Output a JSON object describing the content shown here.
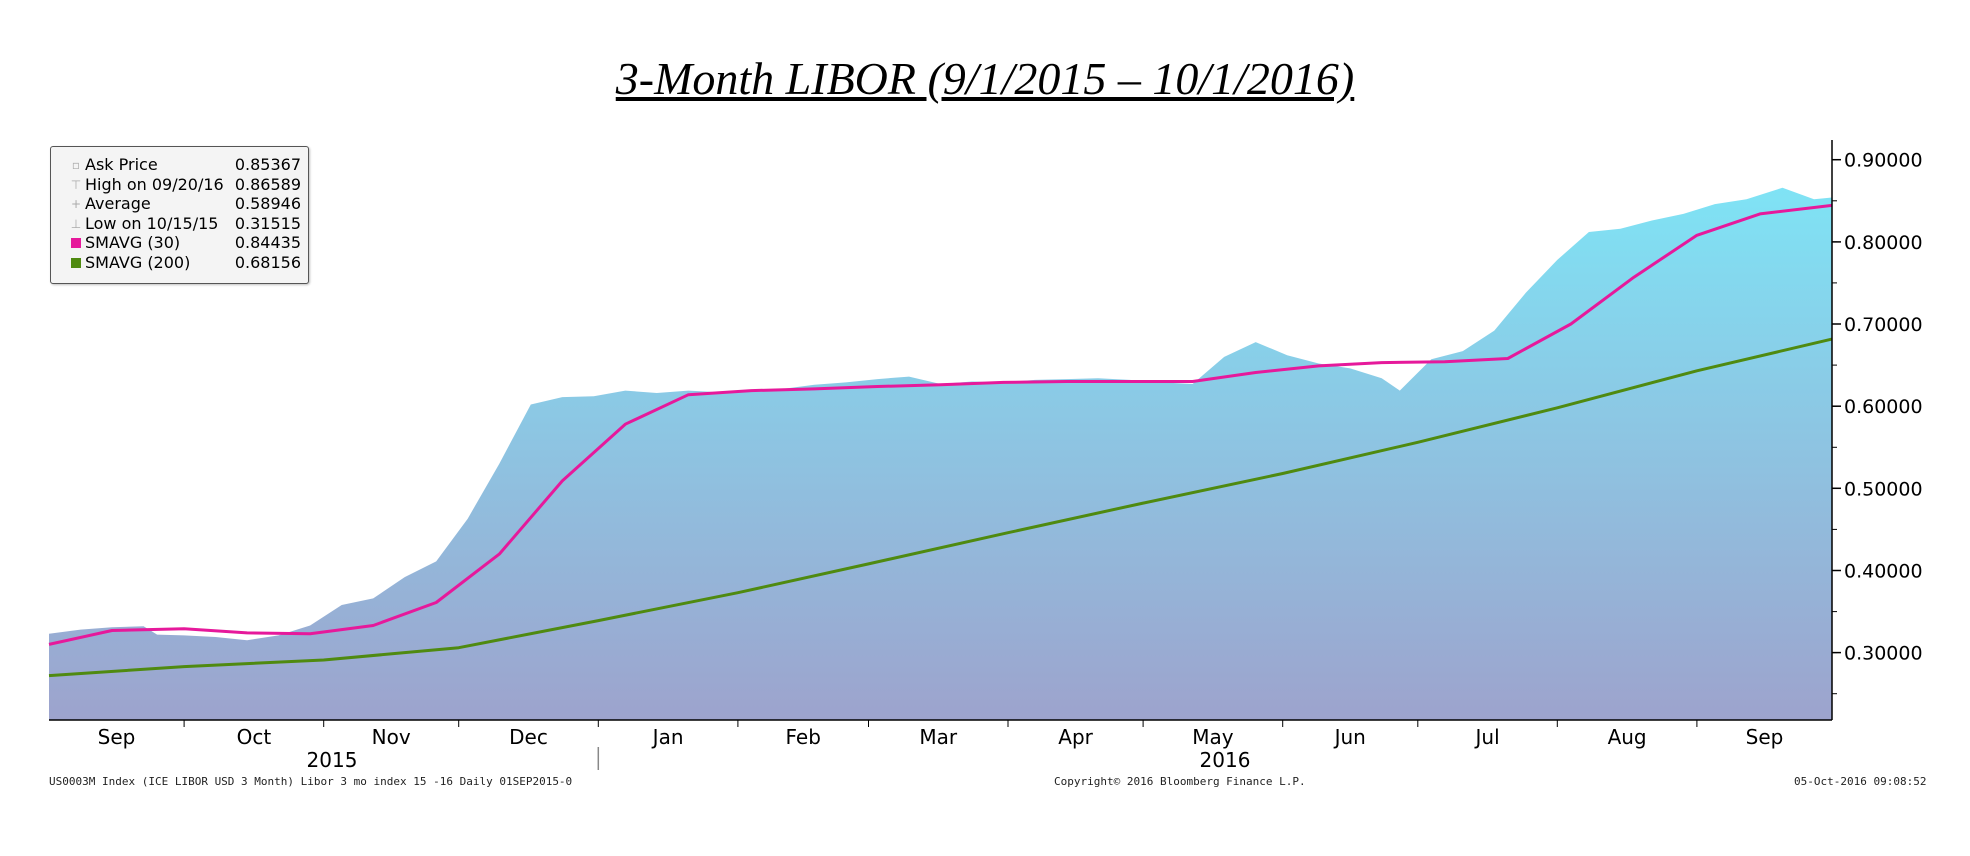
{
  "title": "3-Month LIBOR (9/1/2015 – 10/1/2016)",
  "legend": [
    {
      "label": "Ask Price",
      "value": "0.85367",
      "glyph": "▫",
      "color": ""
    },
    {
      "label": "High on 09/20/16",
      "value": "0.86589",
      "glyph": "⊤",
      "color": ""
    },
    {
      "label": "Average",
      "value": "0.58946",
      "glyph": "+",
      "color": ""
    },
    {
      "label": "Low on 10/15/15",
      "value": "0.31515",
      "glyph": "⊥",
      "color": ""
    },
    {
      "label": "SMAVG (30)",
      "value": "0.84435",
      "glyph": "",
      "color": "#e6199b"
    },
    {
      "label": "SMAVG (200)",
      "value": "0.68156",
      "glyph": "",
      "color": "#4f8a10"
    }
  ],
  "footer": {
    "left": "US0003M Index (ICE LIBOR USD 3 Month) Libor 3 mo index 15 -16  Daily 01SEP2015-0",
    "center": "Copyright© 2016 Bloomberg Finance L.P.",
    "right": "05-Oct-2016 09:08:52"
  },
  "colors": {
    "area_top": "#7fe3f5",
    "area_bottom": "#9da3cd",
    "sma30": "#e6199b",
    "sma200": "#4f8a10"
  },
  "chart_data": {
    "type": "area",
    "title": "3-Month LIBOR (9/1/2015 – 10/1/2016)",
    "xlabel": "",
    "ylabel": "",
    "x_tick_labels": [
      "Sep",
      "Oct",
      "Nov",
      "Dec",
      "Jan",
      "Feb",
      "Mar",
      "Apr",
      "May",
      "Jun",
      "Jul",
      "Aug",
      "Sep"
    ],
    "year_labels": [
      "2015",
      "2016"
    ],
    "y_tick_labels": [
      "0.90000",
      "0.80000",
      "0.70000",
      "0.60000",
      "0.50000",
      "0.40000",
      "0.30000"
    ],
    "y_ticks": [
      0.9,
      0.8,
      0.7,
      0.6,
      0.5,
      0.4,
      0.3
    ],
    "ylim": [
      0.218,
      0.924
    ],
    "y_axis_side": "right",
    "grid": false,
    "legend_position": "top-left",
    "series": [
      {
        "name": "Ask Price",
        "kind": "area",
        "x": [
          "2015-09-01",
          "2015-09-08",
          "2015-09-15",
          "2015-09-22",
          "2015-09-25",
          "2015-10-01",
          "2015-10-08",
          "2015-10-15",
          "2015-10-22",
          "2015-10-29",
          "2015-11-05",
          "2015-11-12",
          "2015-11-19",
          "2015-11-26",
          "2015-12-03",
          "2015-12-10",
          "2015-12-17",
          "2015-12-24",
          "2015-12-31",
          "2016-01-07",
          "2016-01-14",
          "2016-01-21",
          "2016-01-28",
          "2016-02-04",
          "2016-02-11",
          "2016-02-18",
          "2016-02-25",
          "2016-03-03",
          "2016-03-10",
          "2016-03-17",
          "2016-03-24",
          "2016-03-31",
          "2016-04-07",
          "2016-04-14",
          "2016-04-21",
          "2016-04-28",
          "2016-05-05",
          "2016-05-12",
          "2016-05-19",
          "2016-05-26",
          "2016-06-02",
          "2016-06-09",
          "2016-06-16",
          "2016-06-23",
          "2016-06-27",
          "2016-07-04",
          "2016-07-11",
          "2016-07-18",
          "2016-07-25",
          "2016-08-01",
          "2016-08-08",
          "2016-08-15",
          "2016-08-22",
          "2016-08-29",
          "2016-09-05",
          "2016-09-12",
          "2016-09-20",
          "2016-09-27",
          "2016-10-01"
        ],
        "values": [
          0.323,
          0.328,
          0.331,
          0.332,
          0.322,
          0.321,
          0.319,
          0.3151,
          0.321,
          0.333,
          0.358,
          0.366,
          0.392,
          0.411,
          0.463,
          0.53,
          0.602,
          0.611,
          0.612,
          0.619,
          0.616,
          0.619,
          0.617,
          0.618,
          0.621,
          0.626,
          0.629,
          0.633,
          0.636,
          0.627,
          0.63,
          0.629,
          0.632,
          0.633,
          0.634,
          0.632,
          0.629,
          0.627,
          0.66,
          0.678,
          0.662,
          0.652,
          0.646,
          0.634,
          0.619,
          0.657,
          0.667,
          0.692,
          0.738,
          0.778,
          0.812,
          0.816,
          0.826,
          0.834,
          0.846,
          0.852,
          0.8659,
          0.852,
          0.854
        ]
      },
      {
        "name": "SMAVG (30)",
        "kind": "line",
        "x": [
          "2015-09-01",
          "2015-09-15",
          "2015-10-01",
          "2015-10-15",
          "2015-10-29",
          "2015-11-12",
          "2015-11-26",
          "2015-12-10",
          "2015-12-24",
          "2016-01-07",
          "2016-01-21",
          "2016-02-04",
          "2016-02-18",
          "2016-03-03",
          "2016-03-17",
          "2016-03-31",
          "2016-04-14",
          "2016-04-28",
          "2016-05-12",
          "2016-05-26",
          "2016-06-09",
          "2016-06-23",
          "2016-07-07",
          "2016-07-21",
          "2016-08-04",
          "2016-08-18",
          "2016-09-01",
          "2016-09-15",
          "2016-10-01"
        ],
        "values": [
          0.31,
          0.327,
          0.329,
          0.324,
          0.323,
          0.333,
          0.361,
          0.42,
          0.509,
          0.578,
          0.614,
          0.619,
          0.621,
          0.624,
          0.626,
          0.629,
          0.63,
          0.63,
          0.63,
          0.641,
          0.649,
          0.653,
          0.654,
          0.658,
          0.7,
          0.757,
          0.808,
          0.834,
          0.8444
        ]
      },
      {
        "name": "SMAVG (200)",
        "kind": "line",
        "x": [
          "2015-09-01",
          "2015-10-01",
          "2015-11-01",
          "2015-12-01",
          "2016-01-01",
          "2016-02-01",
          "2016-03-01",
          "2016-04-01",
          "2016-05-01",
          "2016-06-01",
          "2016-07-01",
          "2016-08-01",
          "2016-09-01",
          "2016-10-01"
        ],
        "values": [
          0.272,
          0.283,
          0.291,
          0.306,
          0.339,
          0.373,
          0.408,
          0.446,
          0.482,
          0.518,
          0.556,
          0.598,
          0.643,
          0.6816
        ]
      }
    ]
  }
}
